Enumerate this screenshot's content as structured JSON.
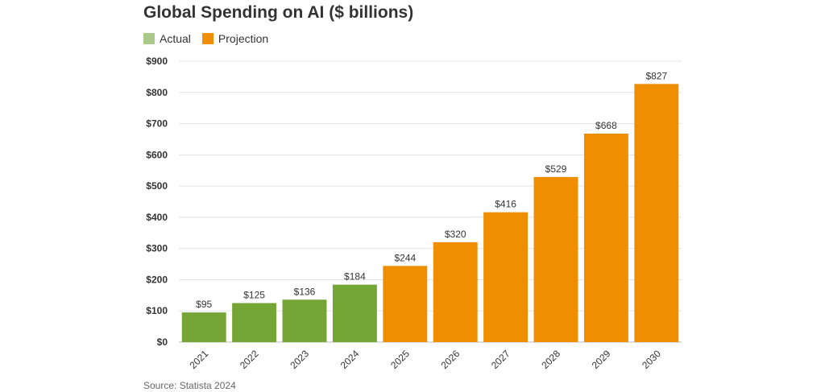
{
  "header": {
    "title": "Global Spending on AI ($ billions)"
  },
  "legend": {
    "items": [
      {
        "label": "Actual",
        "color": "#74a535"
      },
      {
        "label": "Projection",
        "color": "#ef8e00"
      }
    ]
  },
  "source": "Source: Statista 2024",
  "chart_data": {
    "type": "bar",
    "title": "Global Spending on AI ($ billions)",
    "xlabel": "",
    "ylabel": "",
    "categories": [
      "2021",
      "2022",
      "2023",
      "2024",
      "2025",
      "2026",
      "2027",
      "2028",
      "2029",
      "2030"
    ],
    "values": [
      95,
      125,
      136,
      184,
      244,
      320,
      416,
      529,
      668,
      827
    ],
    "data_labels": [
      "$95",
      "$125",
      "$136",
      "$184",
      "$244",
      "$320",
      "$416",
      "$529",
      "$668",
      "$827"
    ],
    "series_of_bar": [
      "Actual",
      "Actual",
      "Actual",
      "Actual",
      "Projection",
      "Projection",
      "Projection",
      "Projection",
      "Projection",
      "Projection"
    ],
    "series": [
      {
        "name": "Actual",
        "color": "#74a535"
      },
      {
        "name": "Projection",
        "color": "#ef8e00"
      }
    ],
    "ylim": [
      0,
      900
    ],
    "y_ticks": [
      0,
      100,
      200,
      300,
      400,
      500,
      600,
      700,
      800,
      900
    ],
    "y_tick_labels": [
      "$0",
      "$100",
      "$200",
      "$300",
      "$400",
      "$500",
      "$600",
      "$700",
      "$800",
      "$900"
    ],
    "grid": true,
    "legend_position": "top-left",
    "x_tick_rotation": "rotated"
  }
}
